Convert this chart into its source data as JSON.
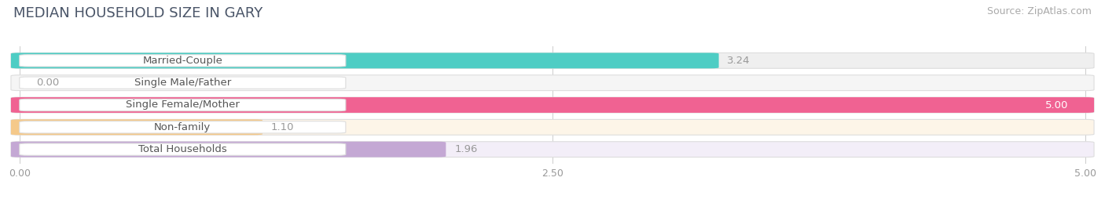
{
  "title": "MEDIAN HOUSEHOLD SIZE IN GARY",
  "source": "Source: ZipAtlas.com",
  "categories": [
    "Married-Couple",
    "Single Male/Father",
    "Single Female/Mother",
    "Non-family",
    "Total Households"
  ],
  "values": [
    3.24,
    0.0,
    5.0,
    1.1,
    1.96
  ],
  "bar_colors": [
    "#4ecdc4",
    "#a8c4e8",
    "#f06292",
    "#f5c98a",
    "#c4a8d4"
  ],
  "bar_bg_colors": [
    "#efefef",
    "#f5f5f5",
    "#fce4ec",
    "#fdf5e8",
    "#f3eef8"
  ],
  "xlim": [
    0,
    5.0
  ],
  "xticks": [
    0.0,
    2.5,
    5.0
  ],
  "xtick_labels": [
    "0.00",
    "2.50",
    "5.00"
  ],
  "value_label_inside_color": "#ffffff",
  "value_label_outside_color": "#999999",
  "value_inside_threshold": 4.5,
  "title_fontsize": 13,
  "source_fontsize": 9,
  "label_fontsize": 9.5,
  "value_fontsize": 9.5,
  "tick_fontsize": 9,
  "background_color": "#ffffff",
  "bar_bg_global": "#eeeeee"
}
